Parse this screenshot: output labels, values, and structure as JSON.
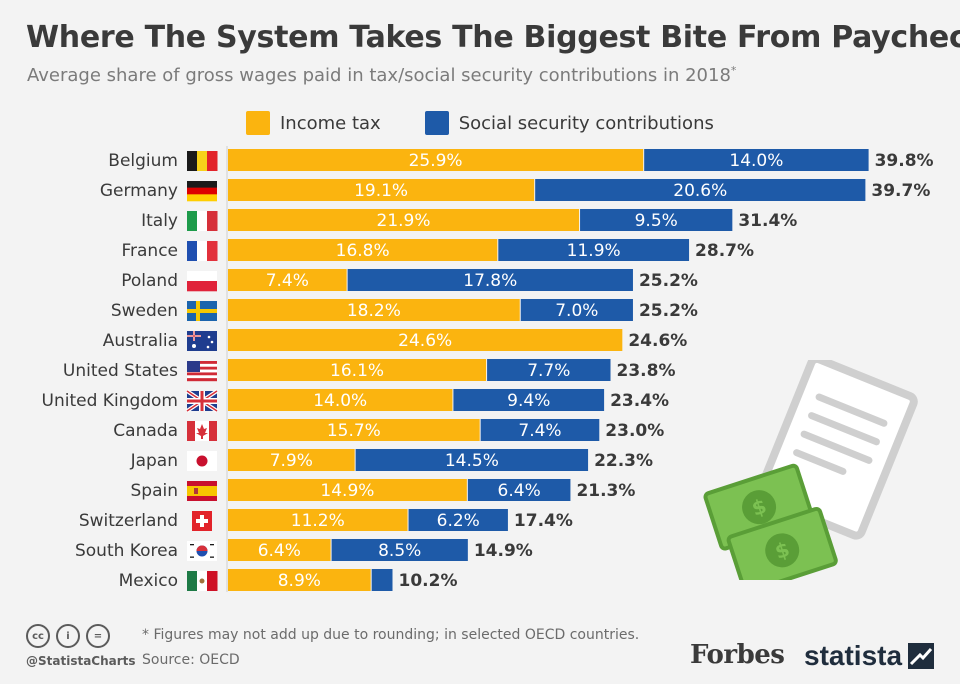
{
  "title": "Where The System Takes The Biggest Bite From Paychecks",
  "subtitle": "Average share of gross wages paid in tax/social security contributions in 2018",
  "subtitle_mark": "*",
  "legend": {
    "income": "Income tax",
    "social": "Social security contributions"
  },
  "colors": {
    "income": "#fbb40f",
    "social": "#1e5aa8",
    "background": "#f3f3f3",
    "text": "#3a3a3a"
  },
  "chart_data": {
    "type": "bar",
    "orientation": "horizontal",
    "stacked": true,
    "categories": [
      "Belgium",
      "Germany",
      "Italy",
      "France",
      "Poland",
      "Sweden",
      "Australia",
      "United States",
      "United Kingdom",
      "Canada",
      "Japan",
      "Spain",
      "Switzerland",
      "South Korea",
      "Mexico"
    ],
    "series": [
      {
        "name": "Income tax",
        "values": [
          25.9,
          19.1,
          21.9,
          16.8,
          7.4,
          18.2,
          24.6,
          16.1,
          14.0,
          15.7,
          7.9,
          14.9,
          11.2,
          6.4,
          8.9
        ]
      },
      {
        "name": "Social security contributions",
        "values": [
          14.0,
          20.6,
          9.5,
          11.9,
          17.8,
          7.0,
          0,
          7.7,
          9.4,
          7.4,
          14.5,
          6.4,
          6.2,
          8.5,
          1.3
        ]
      }
    ],
    "segment_labels": [
      [
        "25.9%",
        "14.0%"
      ],
      [
        "19.1%",
        "20.6%"
      ],
      [
        "21.9%",
        "9.5%"
      ],
      [
        "16.8%",
        "11.9%"
      ],
      [
        "7.4%",
        "17.8%"
      ],
      [
        "18.2%",
        "7.0%"
      ],
      [
        "24.6%",
        ""
      ],
      [
        "16.1%",
        "7.7%"
      ],
      [
        "14.0%",
        "9.4%"
      ],
      [
        "15.7%",
        "7.4%"
      ],
      [
        "7.9%",
        "14.5%"
      ],
      [
        "14.9%",
        "6.4%"
      ],
      [
        "11.2%",
        "6.2%"
      ],
      [
        "6.4%",
        "8.5%"
      ],
      [
        "8.9%",
        ""
      ]
    ],
    "totals": [
      "39.8%",
      "39.7%",
      "31.4%",
      "28.7%",
      "25.2%",
      "25.2%",
      "24.6%",
      "23.8%",
      "23.4%",
      "23.0%",
      "22.3%",
      "21.3%",
      "17.4%",
      "14.9%",
      "10.2%"
    ],
    "flag_icons": [
      "belgium-flag-icon",
      "germany-flag-icon",
      "italy-flag-icon",
      "france-flag-icon",
      "poland-flag-icon",
      "sweden-flag-icon",
      "australia-flag-icon",
      "usa-flag-icon",
      "uk-flag-icon",
      "canada-flag-icon",
      "japan-flag-icon",
      "spain-flag-icon",
      "switzerland-flag-icon",
      "south-korea-flag-icon",
      "mexico-flag-icon"
    ],
    "xlim": [
      0,
      40
    ],
    "grid": false,
    "legend_position": "top"
  },
  "footer": {
    "cc_icons": [
      "cc",
      "i",
      "="
    ],
    "handle": "@StatistaCharts",
    "note": "* Figures may not add up due to rounding; in selected OECD countries.",
    "source": "Source: OECD",
    "forbes": "Forbes",
    "statista": "statista"
  }
}
